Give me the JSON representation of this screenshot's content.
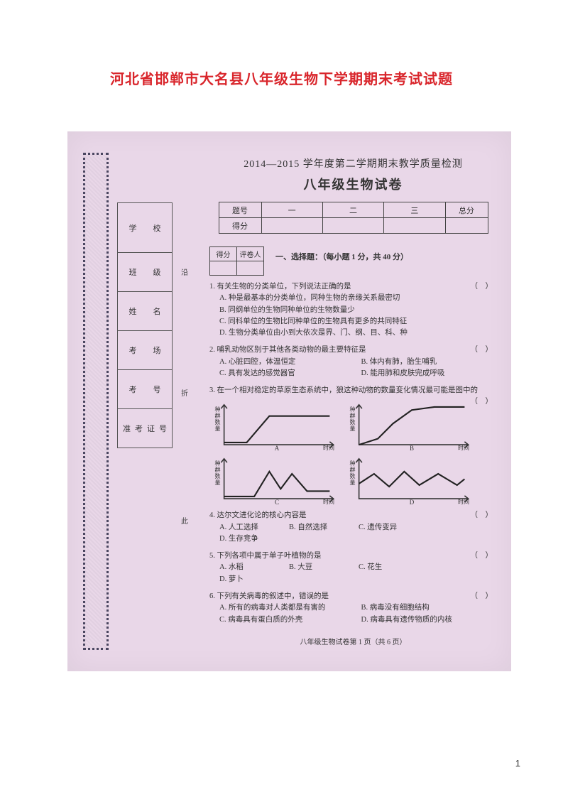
{
  "page_title": "河北省邯郸市大名县八年级生物下学期期末考试试题",
  "page_number": "1",
  "info_fields": [
    "学　校",
    "班　级",
    "姓　名",
    "考　场",
    "考　号",
    "准考证号"
  ],
  "cut_marks": [
    "沿",
    "折",
    "此"
  ],
  "exam": {
    "head1": "2014—2015 学年度第二学期期末教学质量检测",
    "head2": "八年级生物试卷",
    "score_headers": [
      "题号",
      "一",
      "二",
      "三",
      "总分"
    ],
    "score_row2": "得分",
    "mini_headers": [
      "得分",
      "评卷人"
    ],
    "section1": "一、选择题：（每小题 1 分，共 40 分）"
  },
  "questions": [
    {
      "num": "1",
      "stem": "有关生物的分类单位，下列说法正确的是",
      "paren": "（　）",
      "opts": [
        "A. 种是最基本的分类单位，同种生物的亲缘关系最密切",
        "B. 同纲单位的生物同种单位的生物数量少",
        "C. 同科单位的生物比同种单位的生物具有更多的共同特征",
        "D. 生物分类单位由小到大依次是界、门、纲、目、科、种"
      ]
    },
    {
      "num": "2",
      "stem": "哺乳动物区别于其他各类动物的最主要特征是",
      "paren": "（　）",
      "opts": [
        "A. 心脏四腔，体温恒定",
        "B. 体内有肺，胎生哺乳",
        "C. 具有发达的感觉器官",
        "D. 能用肺和皮肤完成呼吸"
      ],
      "two_col": true
    },
    {
      "num": "3",
      "stem": "在一个相对稳定的草原生态系统中，狼这种动物的数量变化情况最可能是图中的",
      "paren": "（　）"
    },
    {
      "num": "4",
      "stem": "达尔文进化论的核心内容是",
      "paren": "（　）",
      "opts": [
        "A. 人工选择",
        "B. 自然选择",
        "C. 遗传变异",
        "D. 生存竞争"
      ],
      "inline": true
    },
    {
      "num": "5",
      "stem": "下列各项中属于单子叶植物的是",
      "paren": "（　）",
      "opts": [
        "A. 水稻",
        "B. 大豆",
        "C. 花生",
        "D. 萝卜"
      ],
      "inline": true
    },
    {
      "num": "6",
      "stem": "下列有关病毒的叙述中，错误的是",
      "paren": "（　）",
      "opts": [
        "A. 所有的病毒对人类都是有害的",
        "B. 病毒没有细胞结构",
        "C. 病毒具有蛋白质的外壳",
        "D. 病毒具有遗传物质的内核"
      ],
      "two_col": true
    }
  ],
  "charts": {
    "ylabel": "种群数量",
    "xlabel": "时间",
    "tags": [
      "A",
      "B",
      "C",
      "D"
    ],
    "axis_color": "#333",
    "line_color": "#222",
    "line_width": 2,
    "A": {
      "type": "line",
      "points": [
        [
          10,
          55
        ],
        [
          40,
          55
        ],
        [
          70,
          20
        ],
        [
          150,
          20
        ]
      ]
    },
    "B": {
      "type": "line",
      "points": [
        [
          10,
          58
        ],
        [
          35,
          50
        ],
        [
          55,
          30
        ],
        [
          80,
          12
        ],
        [
          110,
          8
        ],
        [
          150,
          8
        ]
      ]
    },
    "C": {
      "type": "line",
      "points": [
        [
          10,
          55
        ],
        [
          50,
          55
        ],
        [
          70,
          22
        ],
        [
          85,
          45
        ],
        [
          100,
          25
        ],
        [
          120,
          48
        ],
        [
          150,
          48
        ]
      ]
    },
    "D": {
      "type": "line",
      "points": [
        [
          10,
          38
        ],
        [
          30,
          25
        ],
        [
          50,
          42
        ],
        [
          70,
          22
        ],
        [
          90,
          40
        ],
        [
          115,
          25
        ],
        [
          140,
          40
        ],
        [
          150,
          32
        ]
      ]
    }
  },
  "footer": "八年级生物试卷第 1 页（共 6 页）"
}
